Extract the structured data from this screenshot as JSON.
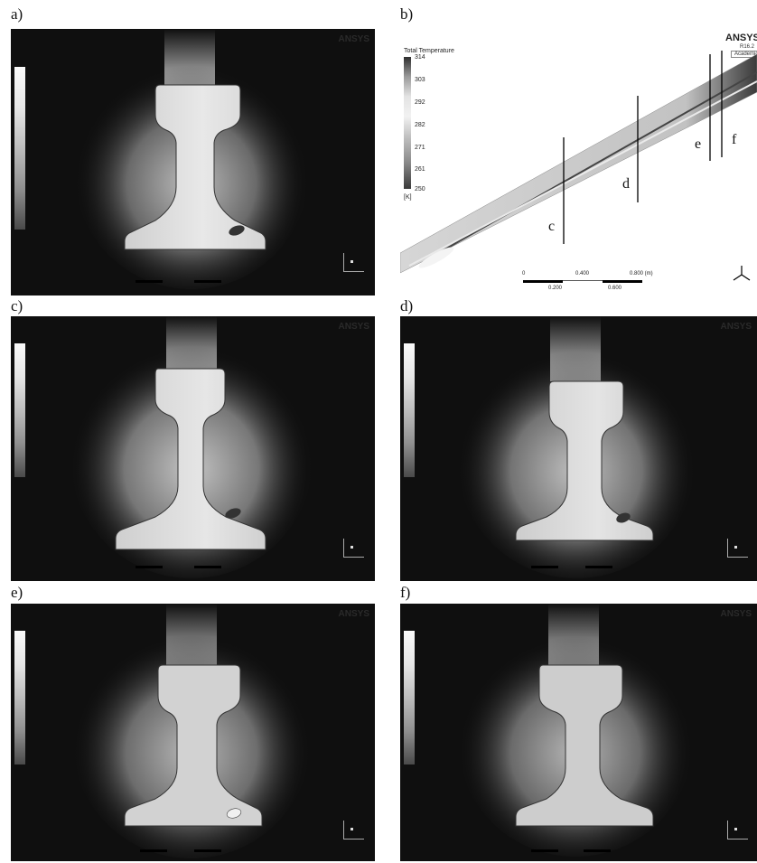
{
  "panels": {
    "a": {
      "label": "a)"
    },
    "b": {
      "label": "b)"
    },
    "c": {
      "label": "c)"
    },
    "d": {
      "label": "d)"
    },
    "e": {
      "label": "e)"
    },
    "f": {
      "label": "f)"
    }
  },
  "overview": {
    "legend_title": "Total Temperature",
    "unit": "[K]",
    "ticks": [
      "314",
      "303",
      "292",
      "282",
      "271",
      "261",
      "250"
    ],
    "brand": "ANSYS",
    "version": "R16.2",
    "edition": "Academic",
    "scale_labels": [
      "0",
      "0.400",
      "0.800 (m)"
    ],
    "scale_sublabels": [
      "0.200",
      "0.600"
    ],
    "section_labels": [
      "c",
      "d",
      "e",
      "f"
    ]
  },
  "rail_panels": {
    "brand": "ANSYS"
  }
}
